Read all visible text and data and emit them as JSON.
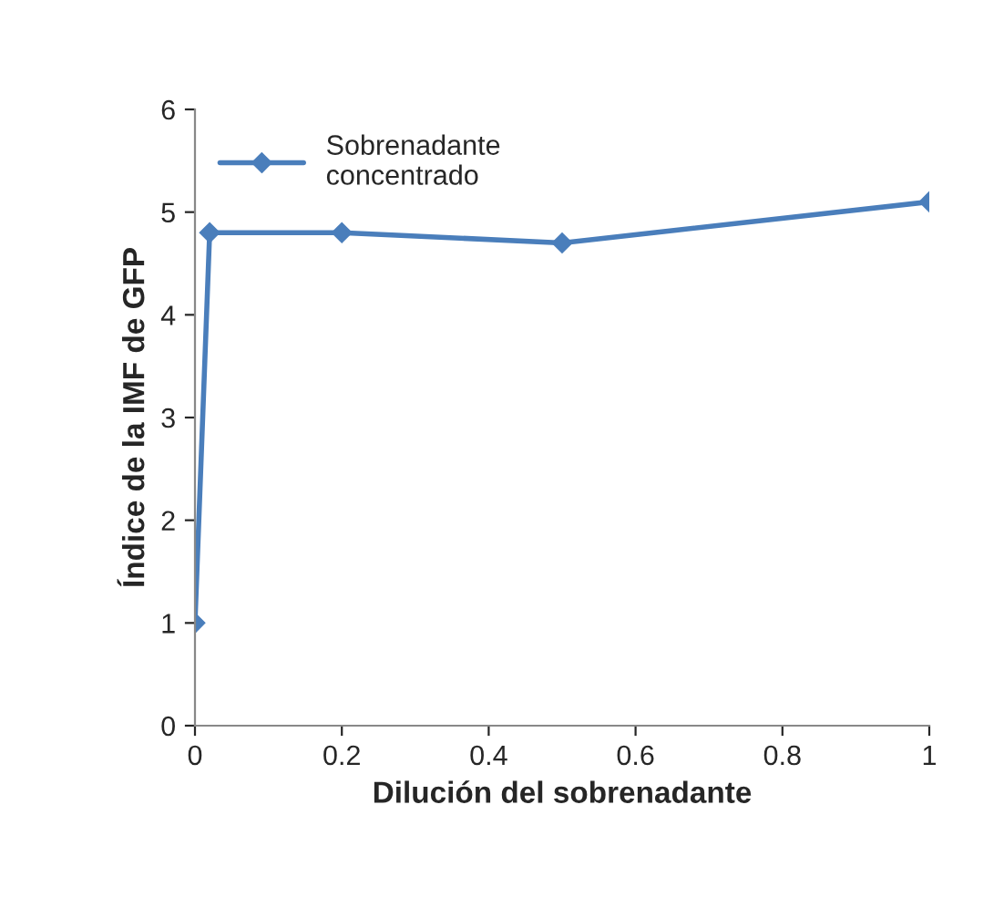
{
  "chart_data": {
    "type": "line",
    "xlabel": "Dilución del sobrenadante",
    "ylabel": "Índice de la IMF de GFP",
    "series": [
      {
        "name": "Sobrenadante\nconcentrado",
        "color": "#4a7ebb",
        "x": [
          0,
          0.02,
          0.2,
          0.5,
          1
        ],
        "values": [
          1,
          4.8,
          4.8,
          4.7,
          5.1
        ]
      }
    ],
    "xlim": [
      0,
      1
    ],
    "xticks": [
      0,
      0.2,
      0.4,
      0.6,
      0.8,
      1
    ],
    "ylim": [
      0,
      6
    ],
    "yticks": [
      0,
      1,
      2,
      3,
      4,
      5,
      6
    ],
    "grid": false,
    "legend": "top left",
    "marker": "diamond",
    "line_style": "solid"
  }
}
